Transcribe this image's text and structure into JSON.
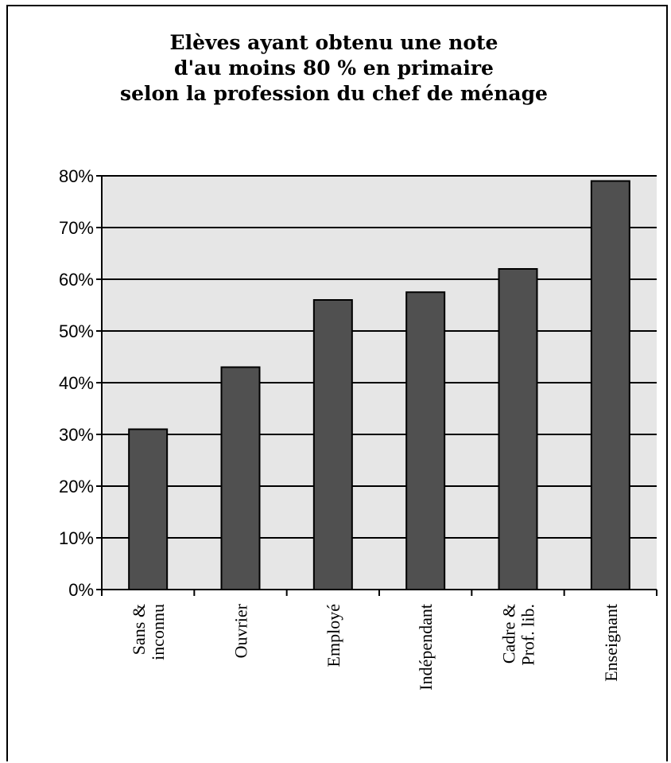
{
  "chart_data": {
    "type": "bar",
    "title": [
      "Elèves ayant obtenu une note",
      "d'au moins 80 % en primaire",
      "selon la profession du chef de ménage"
    ],
    "categories": [
      [
        "Sans &",
        "inconnu"
      ],
      [
        "Ouvrier"
      ],
      [
        "Employé"
      ],
      [
        "Indépendant"
      ],
      [
        "Cadre &",
        "Prof. lib."
      ],
      [
        "Enseignant"
      ]
    ],
    "values": [
      0.31,
      0.43,
      0.56,
      0.575,
      0.62,
      0.79
    ],
    "ylim": [
      0,
      0.8
    ],
    "yticks": [
      "0%",
      "10%",
      "20%",
      "30%",
      "40%",
      "50%",
      "60%",
      "70%",
      "80%"
    ],
    "xlabel": "",
    "ylabel": "",
    "grid": true,
    "colors": {
      "bar": "#505050",
      "plot_background": "#e6e6e6",
      "grid": "#000000"
    }
  }
}
